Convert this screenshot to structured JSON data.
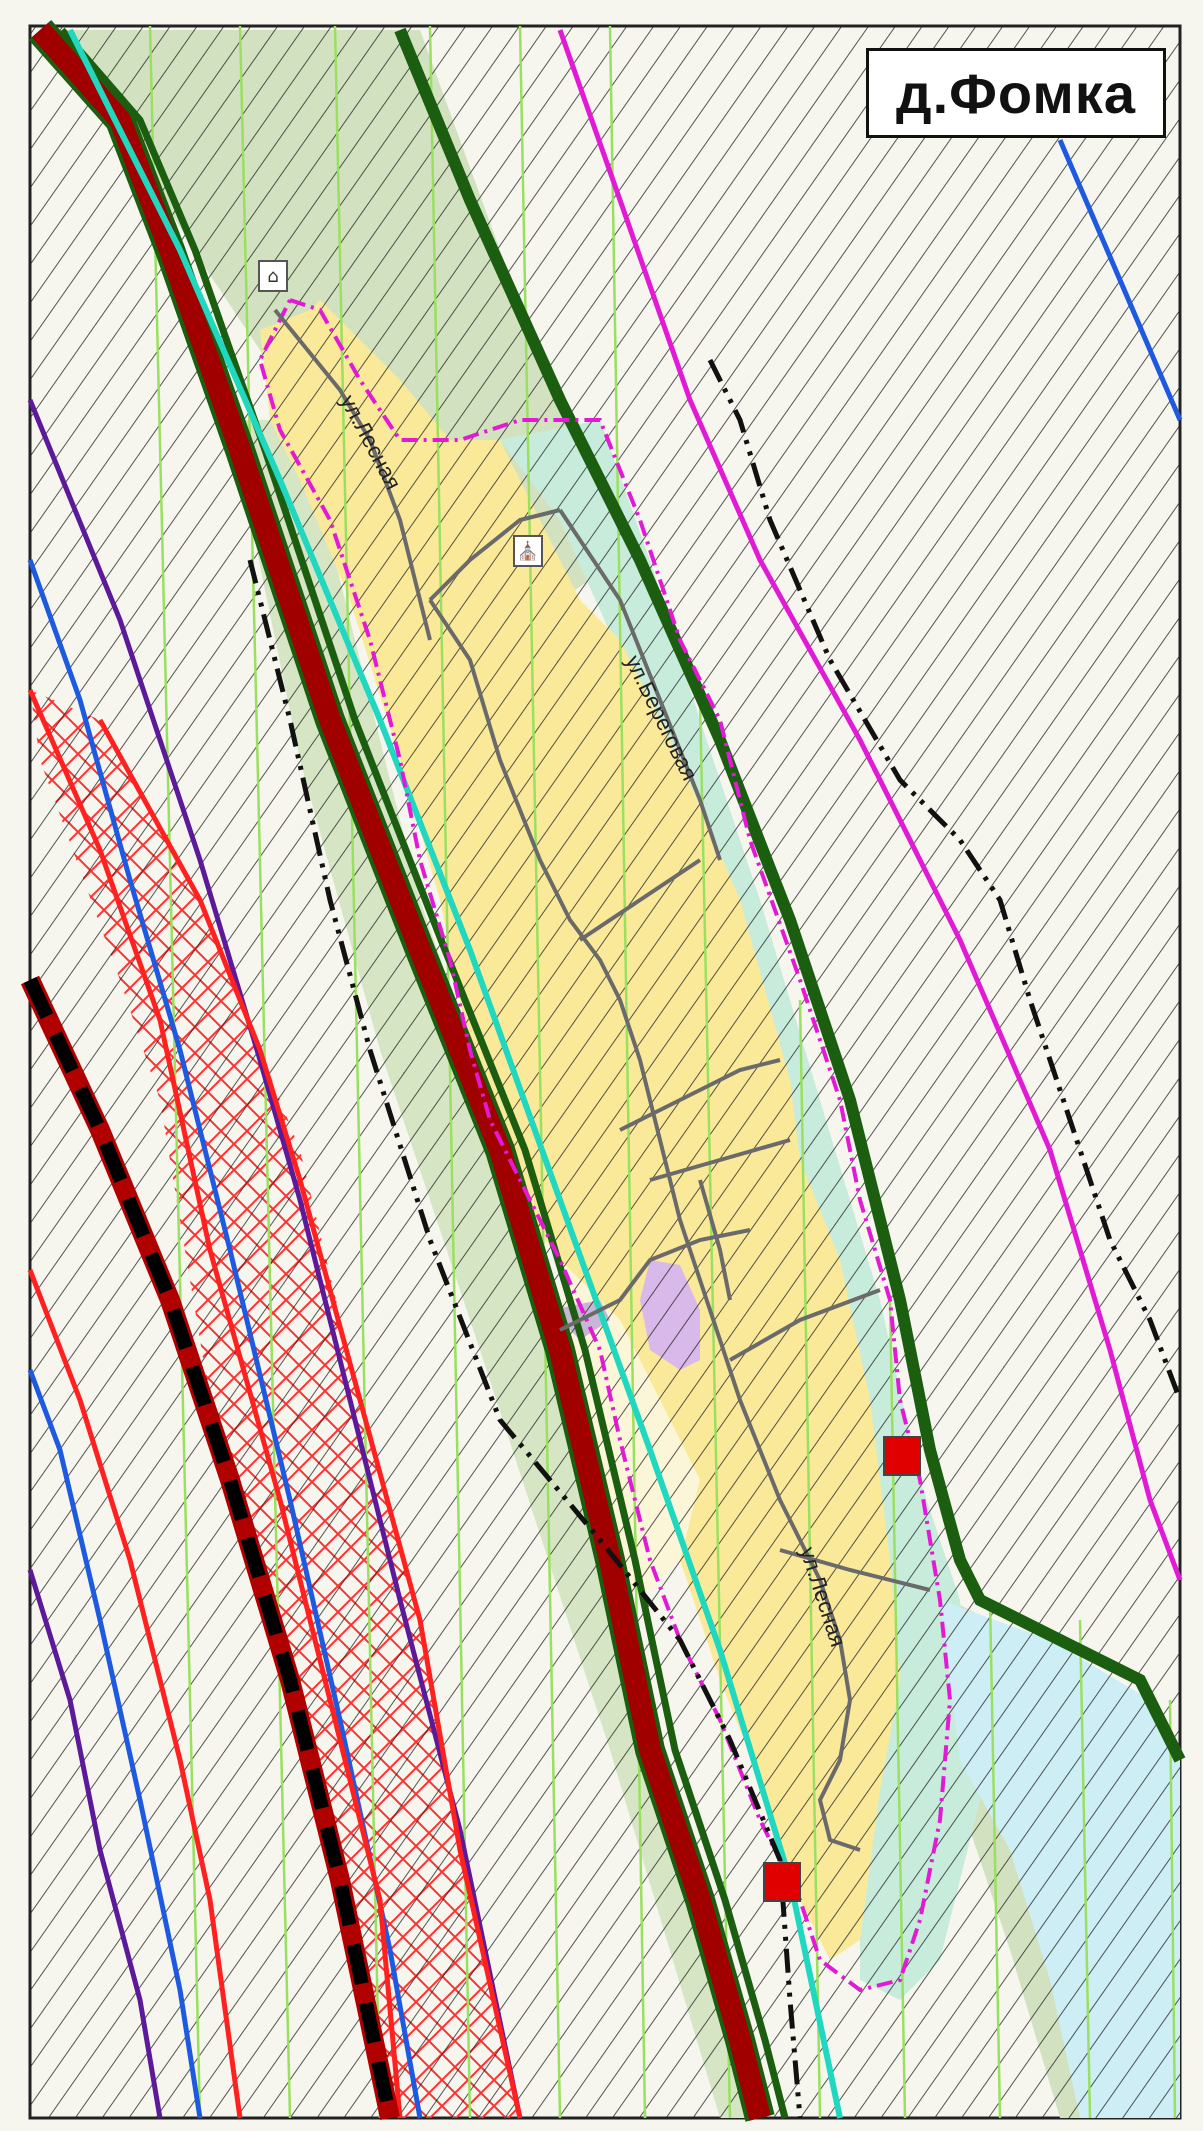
{
  "map": {
    "title": "д.Фомка",
    "streets": {
      "lesnaya_north": "ул.Лесная",
      "beregovaya": "ул.Береговая",
      "lesnaya_south": "ул.Лесная"
    },
    "markers": {
      "north": "monument-icon",
      "center": "church-icon"
    },
    "colors": {
      "background": "#f6f6ee",
      "forest_zone": "#d2e2c0",
      "residential_zone": "#fbe99a",
      "riverside_zone": "#c8ecdc",
      "water_zone": "#cdeef5",
      "public_zone": "#d9b8ea",
      "main_road": "#a00000",
      "settlement_boundary": "#e21ad6",
      "forest_boundary": "#1b5e10",
      "power_line": "#20d8c0",
      "railway": "#000000",
      "red_zone": "#ff2020",
      "blue_line": "#1e5ae0",
      "purple_line": "#5c1a9a",
      "hatching": "#222222",
      "grid_line": "#9ae060"
    }
  }
}
